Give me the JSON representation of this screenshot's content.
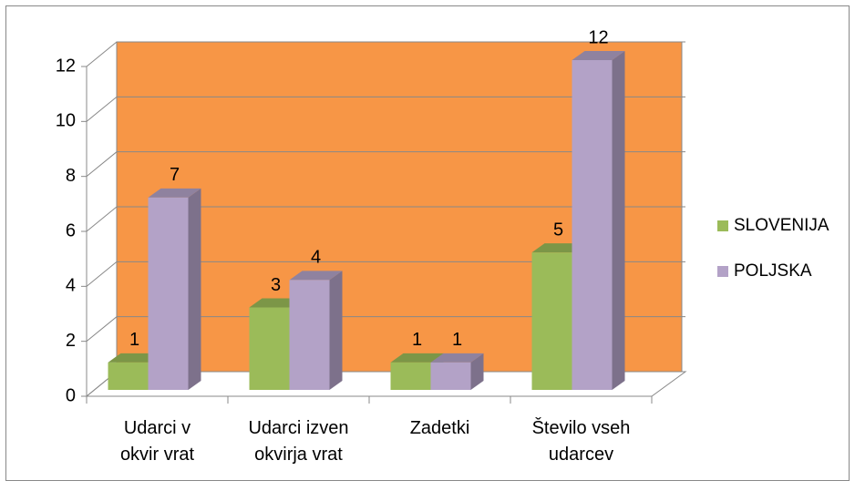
{
  "chart_data": {
    "type": "bar3d",
    "categories": [
      "Udarci v\nokvir vrat",
      "Udarci izven\nokvirja vrat",
      "Zadetki",
      "Število vseh\nudarcev"
    ],
    "series": [
      {
        "name": "SLOVENIJA",
        "color": "#9bbb59",
        "values": [
          1,
          3,
          1,
          5
        ]
      },
      {
        "name": "POLJSKA",
        "color": "#b3a2c7",
        "values": [
          7,
          4,
          1,
          12
        ]
      }
    ],
    "ylim": [
      0,
      12
    ],
    "yticks": [
      0,
      2,
      4,
      6,
      8,
      10,
      12
    ],
    "grid": true,
    "legend": "right",
    "wall_color": "#f79646"
  }
}
